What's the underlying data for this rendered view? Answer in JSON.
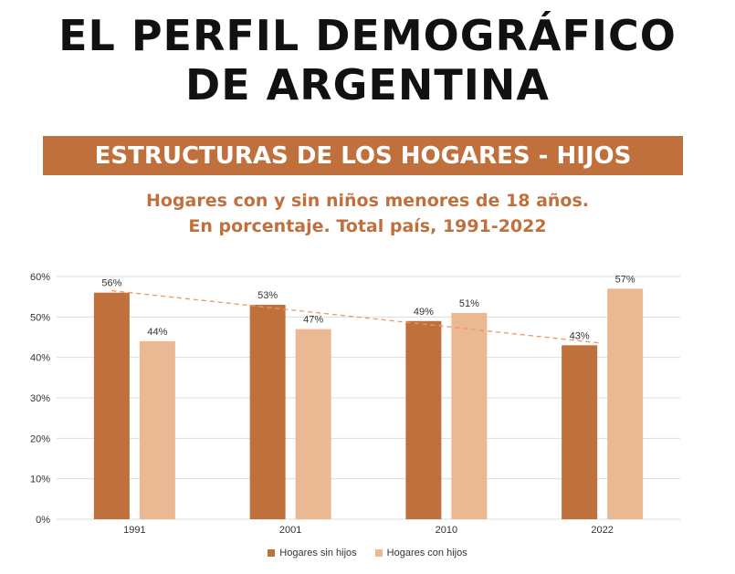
{
  "header": {
    "title_line1": "EL PERFIL DEMOGRÁFICO",
    "title_line2": "DE ARGENTINA",
    "section": "ESTRUCTURAS DE LOS HOGARES - HIJOS",
    "subtitle_line1": "Hogares con y sin niños menores de 18 años.",
    "subtitle_line2": "En porcentaje. Total país, 1991-2022"
  },
  "colors": {
    "accent": "#c0703c",
    "sin_hijos": "#c0703c",
    "con_hijos": "#ebb894",
    "trend": "#f0955f",
    "grid": "#dddddd"
  },
  "chart_data": {
    "type": "bar",
    "categories": [
      "1991",
      "2001",
      "2010",
      "2022"
    ],
    "series": [
      {
        "name": "Hogares sin hijos",
        "values": [
          56,
          53,
          49,
          43
        ],
        "labels": [
          "56%",
          "53%",
          "49%",
          "43%"
        ]
      },
      {
        "name": "Hogares con hijos",
        "values": [
          44,
          47,
          51,
          57
        ],
        "labels": [
          "44%",
          "47%",
          "51%",
          "57%"
        ]
      }
    ],
    "trendline": {
      "series": "Hogares sin hijos",
      "from": 56.5,
      "to": 43.5,
      "style": "dashed"
    },
    "ylim": [
      0,
      60
    ],
    "yticks": [
      0,
      10,
      20,
      30,
      40,
      50,
      60
    ],
    "ytick_labels": [
      "0%",
      "10%",
      "20%",
      "30%",
      "40%",
      "50%",
      "60%"
    ],
    "grid": true,
    "legend": "bottom"
  }
}
